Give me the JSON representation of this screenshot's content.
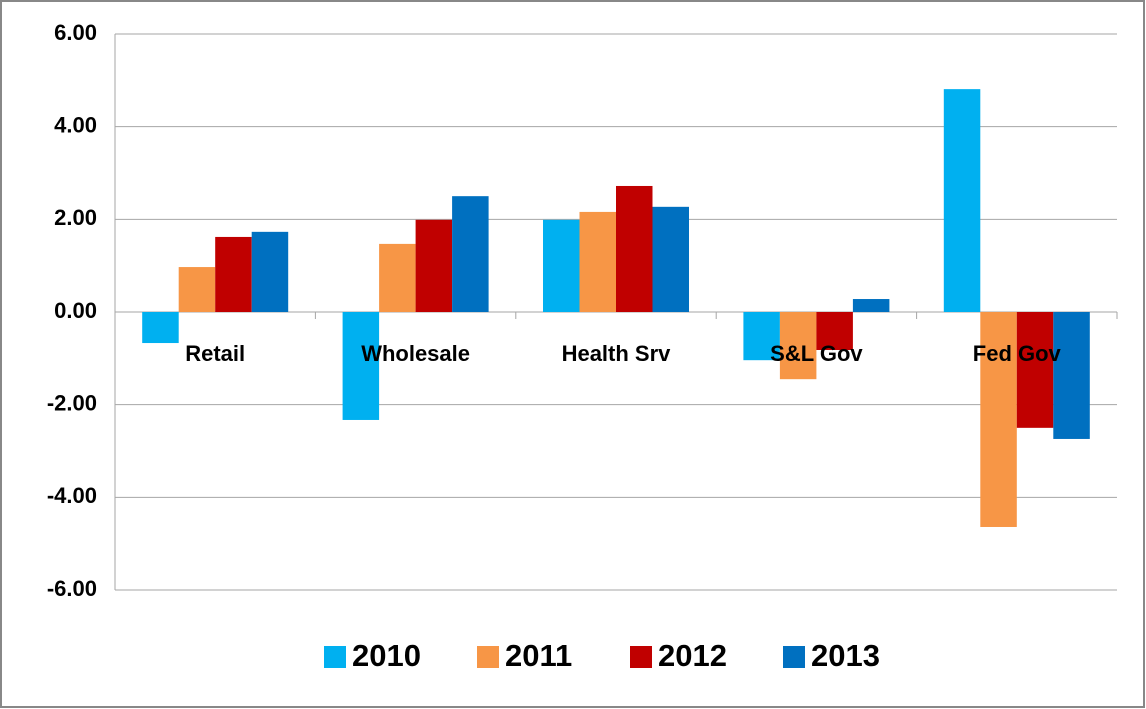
{
  "chart_data": {
    "type": "bar",
    "categories": [
      "Retail",
      "Wholesale",
      "Health Srv",
      "S&L Gov",
      "Fed Gov"
    ],
    "series": [
      {
        "name": "2010",
        "color": "#00b0f0",
        "values": [
          -0.67,
          -2.33,
          1.99,
          -1.04,
          4.81
        ]
      },
      {
        "name": "2011",
        "color": "#f79646",
        "values": [
          0.97,
          1.47,
          2.16,
          -1.45,
          -4.64
        ]
      },
      {
        "name": "2012",
        "color": "#c00000",
        "values": [
          1.62,
          1.99,
          2.72,
          -0.82,
          -2.5
        ]
      },
      {
        "name": "2013",
        "color": "#0070c0",
        "values": [
          1.73,
          2.5,
          2.27,
          0.28,
          -2.74
        ]
      }
    ],
    "ylim": [
      -6,
      6
    ],
    "yticks": [
      {
        "value": -6,
        "label": "-6.00"
      },
      {
        "value": -4,
        "label": "-4.00"
      },
      {
        "value": -2,
        "label": "-2.00"
      },
      {
        "value": 0,
        "label": "0.00"
      },
      {
        "value": 2,
        "label": "2.00"
      },
      {
        "value": 4,
        "label": "4.00"
      },
      {
        "value": 6,
        "label": "6.00"
      }
    ],
    "grid": true,
    "legend": "bottom"
  }
}
